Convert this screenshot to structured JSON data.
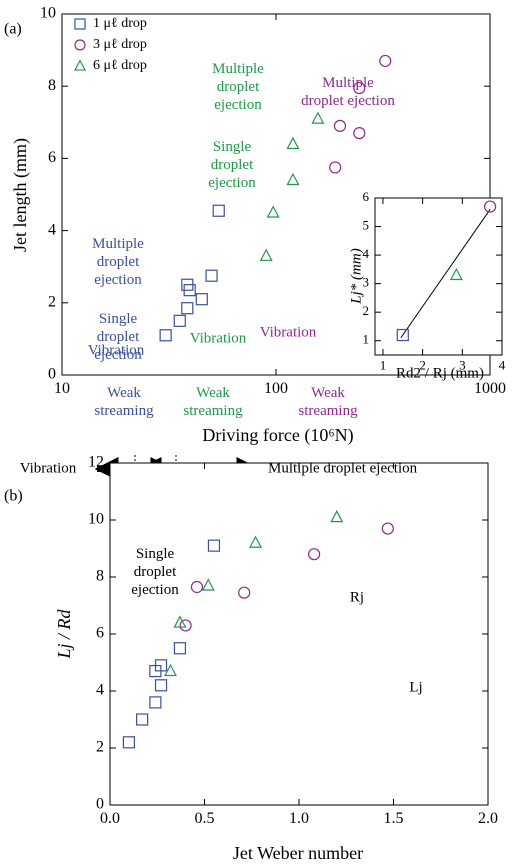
{
  "chart_data": [
    {
      "type": "scatter",
      "panel_label": "(a)",
      "xlabel": "Driving force (10⁶N)",
      "ylabel": "Jet length (mm)",
      "xscale": "log",
      "xlim": [
        10,
        1000
      ],
      "xticks": [
        10,
        100,
        1000
      ],
      "ylim": [
        0,
        10
      ],
      "yticks": [
        0,
        2,
        4,
        6,
        8,
        10
      ],
      "legend": "upper left",
      "series": [
        {
          "name": "1 μℓ drop",
          "color": "#3b4fa0",
          "marker": "square",
          "x": [
            30.5,
            35.5,
            38.5,
            38.5,
            39.5,
            45,
            50,
            54
          ],
          "values": [
            1.1,
            1.5,
            1.85,
            2.5,
            2.35,
            2.1,
            2.75,
            4.55
          ]
        },
        {
          "name": "3 μℓ drop",
          "color": "#92278f",
          "marker": "circle",
          "x": [
            189,
            199,
            245,
            245,
            324
          ],
          "values": [
            5.75,
            6.9,
            6.7,
            7.95,
            8.7
          ]
        },
        {
          "name": "6 μℓ drop",
          "color": "#1c9a4a",
          "marker": "triangle",
          "x": [
            90,
            97,
            120,
            120,
            157
          ],
          "values": [
            3.3,
            4.5,
            5.4,
            6.4,
            7.1
          ]
        }
      ],
      "annotations": [
        {
          "text": "Multiple\ndroplet\nejection",
          "color": "#3b4fa0"
        },
        {
          "text": "Single\ndroplet\nejection",
          "color": "#3b4fa0"
        },
        {
          "text": "Vibration",
          "color": "#3b4fa0"
        },
        {
          "text": "Weak\nstreaming",
          "color": "#3b4fa0"
        },
        {
          "text": "Multiple\ndroplet\nejection",
          "color": "#1c9a4a"
        },
        {
          "text": "Single\ndroplet\nejection",
          "color": "#1c9a4a"
        },
        {
          "text": "Vibration",
          "color": "#1c9a4a"
        },
        {
          "text": "Weak\nstreaming",
          "color": "#1c9a4a"
        },
        {
          "text": "Multiple\ndroplet ejection",
          "color": "#92278f"
        },
        {
          "text": "Vibration",
          "color": "#92278f"
        },
        {
          "text": "Weak\nstreaming",
          "color": "#92278f"
        }
      ]
    },
    {
      "type": "scatter",
      "xlabel": "Rd2 / Rj (mm)",
      "ylabel": "Lj* (mm)",
      "xlim": [
        0.8,
        4
      ],
      "xticks": [
        1,
        2,
        3,
        4
      ],
      "ylim": [
        0.5,
        6
      ],
      "yticks": [
        1,
        2,
        3,
        4,
        5,
        6
      ],
      "series": [
        {
          "color": "#3b4fa0",
          "marker": "square",
          "x": [
            1.5
          ],
          "values": [
            1.2
          ]
        },
        {
          "color": "#1c9a4a",
          "marker": "triangle",
          "x": [
            2.85
          ],
          "values": [
            3.3
          ]
        },
        {
          "color": "#92278f",
          "marker": "circle",
          "x": [
            3.7
          ],
          "values": [
            5.7
          ]
        }
      ]
    },
    {
      "type": "scatter",
      "panel_label": "(b)",
      "xlabel": "Jet Weber number",
      "ylabel": "Lj / Rd",
      "xlim": [
        0,
        2
      ],
      "xticks": [
        {
          "value": 0,
          "label": "0.0"
        },
        0.5,
        {
          "value": 1,
          "label": "1.0"
        },
        1.5,
        {
          "value": 2,
          "label": "2.0"
        }
      ],
      "ylim": [
        0,
        12
      ],
      "yticks": [
        0,
        2,
        4,
        6,
        8,
        10,
        12
      ],
      "series": [
        {
          "color": "#3b4fa0",
          "marker": "square",
          "x": [
            0.1,
            0.17,
            0.24,
            0.24,
            0.27,
            0.27,
            0.37,
            0.55
          ],
          "values": [
            2.2,
            3.0,
            3.6,
            4.7,
            4.2,
            4.9,
            5.5,
            9.1
          ]
        },
        {
          "color": "#92278f",
          "marker": "circle",
          "x": [
            0.4,
            0.46,
            0.71,
            1.08,
            1.47
          ],
          "values": [
            6.3,
            7.65,
            7.45,
            8.8,
            9.7
          ]
        },
        {
          "color": "#1c9a4a",
          "marker": "triangle",
          "x": [
            0.32,
            0.37,
            0.52,
            0.77,
            1.2
          ],
          "values": [
            4.7,
            6.4,
            7.7,
            9.2,
            10.1
          ]
        }
      ],
      "annotations": [
        {
          "text": "Vibration",
          "color": "#000000"
        },
        {
          "text": "Single\ndroplet\nejection",
          "color": "#000000"
        },
        {
          "text": "Multiple droplet ejection",
          "color": "#000000"
        },
        {
          "text": "Rj",
          "color": "#000000"
        },
        {
          "text": "Lj",
          "color": "#000000"
        }
      ]
    }
  ]
}
